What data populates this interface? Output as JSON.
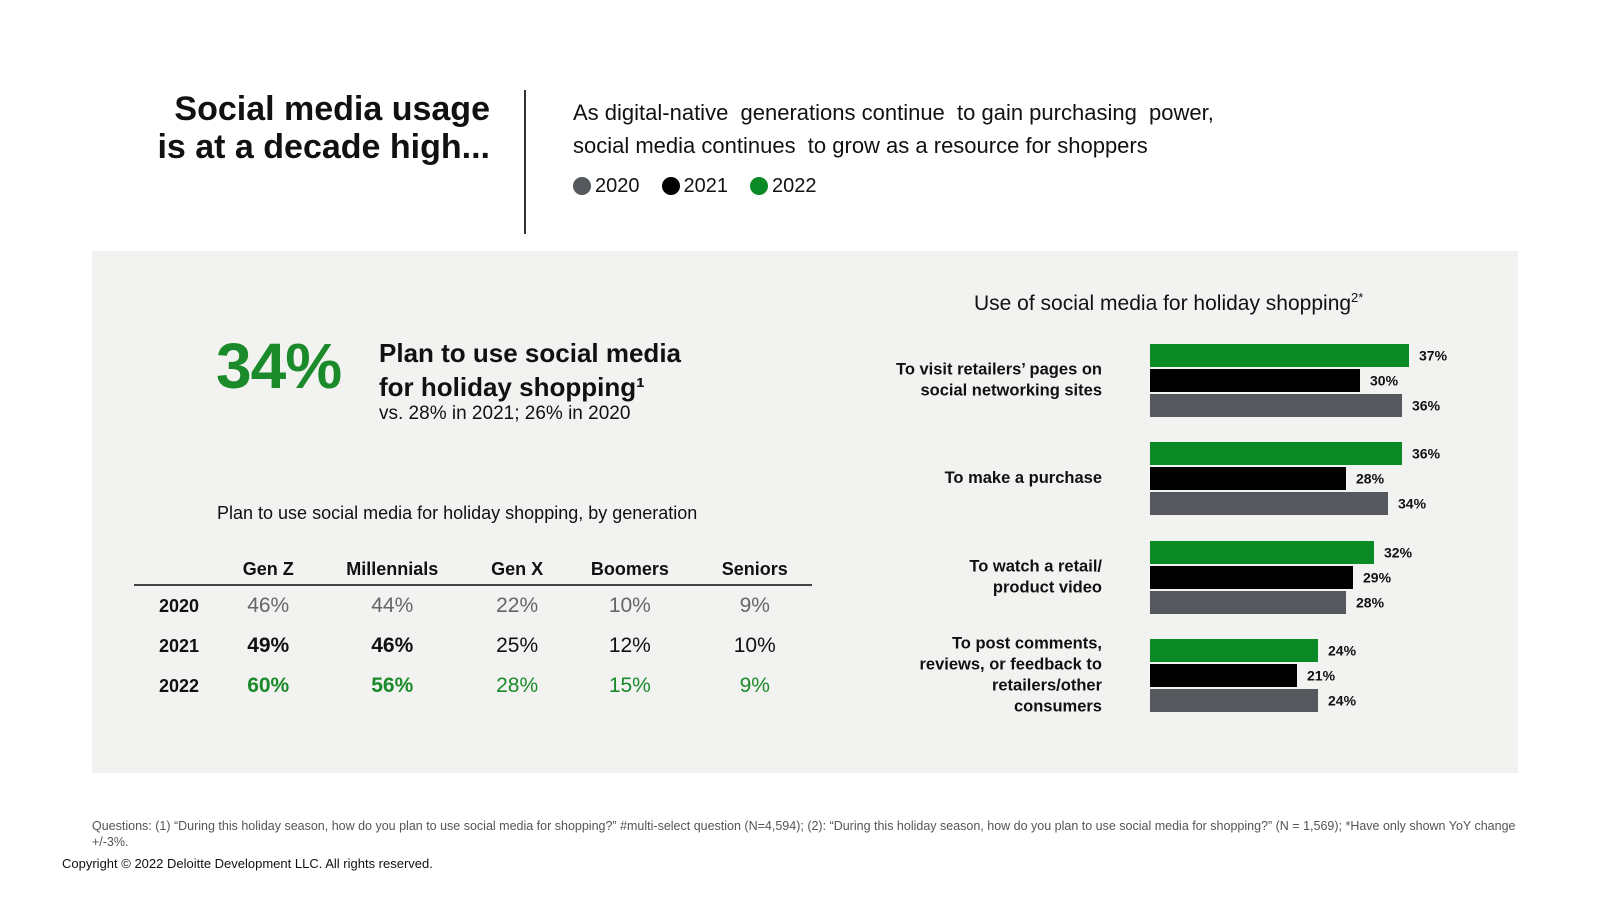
{
  "header": {
    "title_line1": "Social media usage",
    "title_line2": "is at a decade high...",
    "subtitle_line1": "As digital-native  generations continue  to gain purchasing  power,",
    "subtitle_line2": "social media continues  to grow as a resource for shoppers"
  },
  "legend": [
    {
      "label": "2020",
      "color": "#55585c"
    },
    {
      "label": "2021",
      "color": "#000000"
    },
    {
      "label": "2022",
      "color": "#0a8a24"
    }
  ],
  "highlight": {
    "stat": "34%",
    "title_line1": "Plan to use social media",
    "title_line2": "for holiday shopping¹",
    "sub": "vs. 28% in 2021; 26% in 2020"
  },
  "generation_table": {
    "caption": "Plan to use social media for holiday shopping, by generation",
    "columns": [
      "Gen Z",
      "Millennials",
      "Gen X",
      "Boomers",
      "Seniors"
    ],
    "rows": [
      {
        "year": "2020",
        "values": [
          "46%",
          "44%",
          "22%",
          "10%",
          "9%"
        ]
      },
      {
        "year": "2021",
        "values": [
          "49%",
          "46%",
          "25%",
          "12%",
          "10%"
        ]
      },
      {
        "year": "2022",
        "values": [
          "60%",
          "56%",
          "28%",
          "15%",
          "9%"
        ]
      }
    ]
  },
  "chart_data": {
    "type": "bar",
    "orientation": "horizontal",
    "title": "Use of social media for holiday shopping",
    "title_superscript": "2*",
    "categories": [
      [
        "To visit retailers’ pages on",
        "social networking sites"
      ],
      [
        "To make a purchase"
      ],
      [
        "To watch a retail/",
        "product video"
      ],
      [
        "To post comments,",
        "reviews, or feedback to",
        "retailers/other",
        "consumers"
      ]
    ],
    "series": [
      {
        "name": "2022",
        "color": "#0a8a24",
        "values": [
          37,
          36,
          32,
          24
        ]
      },
      {
        "name": "2021",
        "color": "#000000",
        "values": [
          30,
          28,
          29,
          21
        ]
      },
      {
        "name": "2020",
        "color": "#55585c",
        "values": [
          36,
          34,
          28,
          24
        ]
      }
    ],
    "xlim": [
      0,
      40
    ],
    "value_suffix": "%"
  },
  "footer": {
    "footnote": "Questions: (1) “During this holiday season, how do you plan to use social media for shopping?” #multi-select question (N=4,594); (2): “During this holiday season, how do you plan to use social media for shopping?” (N = 1,569); *Have only shown YoY change +/-3%.",
    "copyright": "Copyright © 2022 Deloitte Development LLC. All rights reserved."
  }
}
